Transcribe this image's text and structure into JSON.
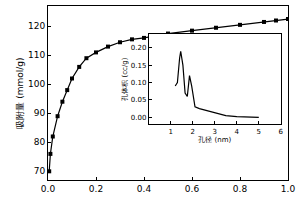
{
  "chart_data": [
    {
      "type": "line",
      "y_label": "吸附量 (mmol/g)",
      "x": [
        0.005,
        0.01,
        0.02,
        0.04,
        0.06,
        0.08,
        0.1,
        0.13,
        0.16,
        0.2,
        0.25,
        0.3,
        0.35,
        0.4,
        0.5,
        0.6,
        0.7,
        0.8,
        0.9,
        0.95,
        1.0
      ],
      "values": [
        70,
        76,
        82,
        89,
        94,
        98,
        102,
        106,
        109,
        111,
        113,
        114.5,
        115.5,
        116,
        117.5,
        118.5,
        119.5,
        120.5,
        121.5,
        122,
        122.5
      ],
      "color": "#000000",
      "marker": "square",
      "line_style": "solid",
      "xlim": [
        0,
        1
      ],
      "xticks": [
        {
          "value": 0,
          "label": "0.0"
        },
        0.2,
        0.4,
        0.6,
        0.8,
        {
          "value": 1,
          "label": "1.0"
        }
      ],
      "ylim": [
        67,
        127
      ],
      "yticks": [
        70,
        80,
        90,
        100,
        110,
        120
      ],
      "grid": false
    },
    {
      "type": "line",
      "x_label": "孔径 (nm)",
      "y_label": "孔体积 (cc/g)",
      "x": [
        1.2,
        1.3,
        1.4,
        1.45,
        1.55,
        1.65,
        1.75,
        1.85,
        1.95,
        2.1,
        2.3,
        2.6,
        3.0,
        3.5,
        4.0,
        4.5,
        5.0
      ],
      "values": [
        0.09,
        0.1,
        0.17,
        0.19,
        0.15,
        0.07,
        0.06,
        0.12,
        0.09,
        0.03,
        0.025,
        0.02,
        0.015,
        0.005,
        0.002,
        0.001,
        0
      ],
      "color": "#000000",
      "line_style": "solid",
      "xlim": [
        0,
        6
      ],
      "xticks": [
        1,
        2,
        3,
        4,
        5,
        6
      ],
      "ylim": [
        -0.02,
        0.24
      ],
      "yticks": [
        {
          "value": 0,
          "label": "0.00"
        },
        0.05,
        {
          "value": 0.1,
          "label": "0.10"
        },
        0.15,
        {
          "value": 0.2,
          "label": "0.20"
        }
      ],
      "grid": false
    }
  ]
}
